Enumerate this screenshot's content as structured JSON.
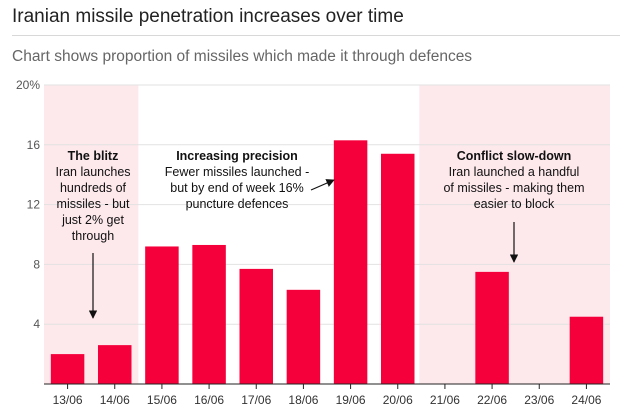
{
  "header": {
    "title": "Iranian missile penetration increases over time",
    "subtitle": "Chart shows proportion of missiles which made it through defences"
  },
  "colors": {
    "bar": "#f5003a",
    "shade": "#fde8ec",
    "grid": "#e2e2e2",
    "text": "#111111"
  },
  "chart_data": {
    "type": "bar",
    "title": "Iranian missile penetration increases over time",
    "subtitle": "Chart shows proportion of missiles which made it through defences",
    "categories": [
      "13/06",
      "14/06",
      "15/06",
      "16/06",
      "17/06",
      "18/06",
      "19/06",
      "20/06",
      "21/06",
      "22/06",
      "23/06",
      "24/06"
    ],
    "values": [
      2.0,
      2.6,
      9.2,
      9.3,
      7.7,
      6.3,
      16.3,
      15.4,
      0,
      7.5,
      0,
      4.5
    ],
    "y_unit": "%",
    "ylim": [
      0,
      20
    ],
    "yticks": [
      4,
      8,
      12,
      16,
      20
    ],
    "ytick_labels": [
      "4",
      "8",
      "12",
      "16",
      "20%"
    ],
    "grid": true,
    "shaded_periods": [
      {
        "from": "13/06",
        "to": "14/06"
      },
      {
        "from": "21/06",
        "to": "24/06"
      }
    ],
    "annotations": [
      {
        "heading": "The blitz",
        "lines": [
          "Iran launches",
          "hundreds of",
          "missiles - but",
          "just 2% get",
          "through"
        ],
        "target": "13/06"
      },
      {
        "heading": "Increasing precision",
        "lines": [
          "Fewer missiles launched -",
          "but by end of week 16%",
          "puncture defences"
        ],
        "target": "19/06"
      },
      {
        "heading": "Conflict slow-down",
        "lines": [
          "Iran launched a handful",
          "of missiles - making them",
          "easier to block"
        ],
        "target": "22/06"
      }
    ]
  }
}
